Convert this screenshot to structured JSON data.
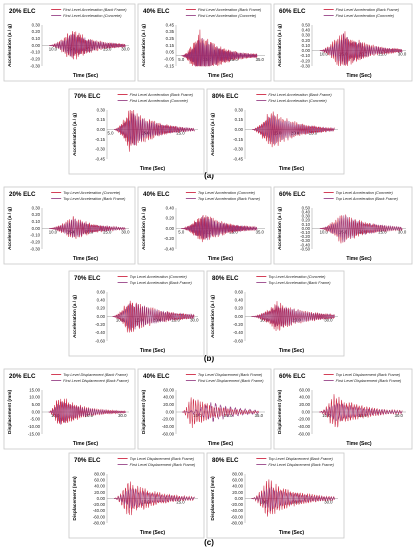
{
  "figure": {
    "section_labels": [
      "(a)",
      "(b)",
      "(c)"
    ]
  },
  "colors": {
    "series_red": "#c8102e",
    "series_purple": "#8c2f7a",
    "panel_border": "#c8c8c8",
    "axis": "#9a9a9a"
  },
  "chart_data": [
    {
      "type": "line",
      "title": "20% ELC",
      "xlabel": "Time (Sec)",
      "ylabel": "Acceleration (a / g)",
      "ylim": [
        -0.3,
        0.3
      ],
      "yticks": [
        "0.30",
        "0.20",
        "0.10",
        "0.00",
        "-0.10",
        "-0.20",
        "-0.30"
      ],
      "xticks": [
        "10.0",
        "15.0",
        "20.0",
        "25.0",
        "30.0"
      ],
      "xlim": [
        7.0,
        31.0
      ],
      "xzero": 0.0,
      "grid": false,
      "legend_position": "top",
      "series": [
        {
          "name": "First Level Acceleration (Back Frame)",
          "color": "#c8102e",
          "wave": {
            "start": 9.0,
            "end": 30.0,
            "amplitude": 0.27,
            "period": 0.45,
            "peak_time": 15.2,
            "decay": 6.0,
            "seed": 1
          }
        },
        {
          "name": "First Level Acceleration (Concrete)",
          "color": "#8c2f7a",
          "wave": {
            "start": 9.0,
            "end": 30.0,
            "amplitude": 0.22,
            "period": 0.47,
            "peak_time": 15.4,
            "decay": 6.0,
            "seed": 2
          }
        }
      ]
    },
    {
      "type": "line",
      "title": "40% ELC",
      "xlabel": "Time (Sec)",
      "ylabel": "Acceleration (a / g)",
      "ylim": [
        -0.15,
        0.45
      ],
      "yticks": [
        "0.45",
        "0.35",
        "0.25",
        "0.15",
        "0.05",
        "-0.05",
        "-0.15"
      ],
      "xticks": [
        "5.0",
        "15.0",
        "25.0",
        "35.0"
      ],
      "xlim": [
        3.0,
        37.0
      ],
      "xzero": 0.0,
      "grid": false,
      "legend_position": "top",
      "series": [
        {
          "name": "First Level Acceleration (Back Frame)",
          "color": "#c8102e",
          "wave": {
            "start": 5.0,
            "end": 34.0,
            "amplitude": 0.4,
            "period": 0.5,
            "peak_time": 12.0,
            "decay": 8.0,
            "seed": 3
          }
        },
        {
          "name": "First Level Acceleration (Concrete)",
          "color": "#8c2f7a",
          "wave": {
            "start": 5.0,
            "end": 34.0,
            "amplitude": 0.3,
            "period": 0.52,
            "peak_time": 12.5,
            "decay": 8.0,
            "seed": 4
          }
        }
      ]
    },
    {
      "type": "line",
      "title": "60% ELC",
      "xlabel": "Time (Sec)",
      "ylabel": "Acceleration (a / g)",
      "ylim": [
        -0.3,
        0.5
      ],
      "yticks": [
        "0.50",
        "0.40",
        "0.30",
        "0.20",
        "0.10",
        "0.00",
        "-0.10",
        "-0.20",
        "-0.30"
      ],
      "xticks": [
        "10.0",
        "15.0",
        "20.0",
        "25.0",
        "30.0"
      ],
      "xlim": [
        7.0,
        31.0
      ],
      "xzero": 0.0,
      "grid": false,
      "legend_position": "top",
      "series": [
        {
          "name": "First Level Acceleration (Back Frame)",
          "color": "#c8102e",
          "wave": {
            "start": 9.0,
            "end": 30.0,
            "amplitude": 0.45,
            "period": 0.45,
            "peak_time": 14.5,
            "decay": 6.0,
            "seed": 5
          }
        },
        {
          "name": "First Level Acceleration (Concrete)",
          "color": "#8c2f7a",
          "wave": {
            "start": 9.0,
            "end": 30.0,
            "amplitude": 0.35,
            "period": 0.47,
            "peak_time": 15.0,
            "decay": 6.0,
            "seed": 6
          }
        }
      ]
    },
    {
      "type": "line",
      "title": "70% ELC",
      "xlabel": "Time (Sec)",
      "ylabel": "Acceleration (a / g)",
      "ylim": [
        -0.45,
        0.3
      ],
      "yticks": [
        "0.30",
        "0.15",
        "0.00",
        "-0.15",
        "-0.30",
        "-0.45"
      ],
      "xticks": [
        "5.0",
        "15.0",
        "25.0"
      ],
      "xlim": [
        4.0,
        30.0
      ],
      "xzero": 0.0,
      "grid": false,
      "legend_position": "top",
      "series": [
        {
          "name": "First Level Acceleration (Back Frame)",
          "color": "#c8102e",
          "wave": {
            "start": 6.0,
            "end": 29.0,
            "amplitude": 0.38,
            "period": 0.5,
            "peak_time": 10.5,
            "decay": 7.0,
            "seed": 7
          }
        },
        {
          "name": "First Level Acceleration (Concrete)",
          "color": "#8c2f7a",
          "wave": {
            "start": 6.0,
            "end": 29.0,
            "amplitude": 0.3,
            "period": 0.52,
            "peak_time": 11.0,
            "decay": 7.0,
            "seed": 8
          }
        }
      ]
    },
    {
      "type": "line",
      "title": "80% ELC",
      "xlabel": "Time (Sec)",
      "ylabel": "Acceleration (a / g)",
      "ylim": [
        -0.45,
        0.3
      ],
      "yticks": [
        "0.30",
        "0.15",
        "0.00",
        "-0.15",
        "-0.30",
        "-0.45"
      ],
      "xticks": [
        "15.0",
        "20.0",
        "25.0"
      ],
      "xticklabels_raw": "-0.1530.0",
      "xlim": [
        6.0,
        32.0
      ],
      "xzero": 0.0,
      "grid": false,
      "legend_position": "top",
      "series": [
        {
          "name": "First Level Acceleration (Back Frame)",
          "color": "#c8102e",
          "wave": {
            "start": 8.0,
            "end": 31.0,
            "amplitude": 0.35,
            "period": 0.55,
            "peak_time": 13.0,
            "decay": 7.0,
            "seed": 9
          }
        },
        {
          "name": "First Level Acceleration (Concrete)",
          "color": "#8c2f7a",
          "wave": {
            "start": 8.0,
            "end": 31.0,
            "amplitude": 0.28,
            "period": 0.57,
            "peak_time": 13.5,
            "decay": 7.0,
            "seed": 10
          }
        }
      ]
    },
    {
      "type": "line",
      "title": "20% ELC",
      "xlabel": "Time (Sec)",
      "ylabel": "Acceleration (a / g)",
      "ylim": [
        -0.3,
        0.3
      ],
      "yticks": [
        "0.30",
        "0.20",
        "0.10",
        "0.00",
        "-0.10",
        "-0.20",
        "-0.30"
      ],
      "xticks": [
        "10.0",
        "15.0",
        "20.0",
        "25.0",
        "30.0"
      ],
      "xlim": [
        7.0,
        31.0
      ],
      "xzero": 0.0,
      "grid": false,
      "legend_position": "top",
      "series": [
        {
          "name": "Top Level Acceleration (Concrete)",
          "color": "#c8102e",
          "wave": {
            "start": 9.0,
            "end": 30.0,
            "amplitude": 0.2,
            "period": 0.5,
            "peak_time": 15.5,
            "decay": 6.0,
            "seed": 11
          }
        },
        {
          "name": "Top Level Acceleration (Back Frame)",
          "color": "#8c2f7a",
          "wave": {
            "start": 9.0,
            "end": 30.0,
            "amplitude": 0.17,
            "period": 0.52,
            "peak_time": 15.8,
            "decay": 6.0,
            "seed": 12
          }
        }
      ]
    },
    {
      "type": "line",
      "title": "40% ELC",
      "xlabel": "Time (Sec)",
      "ylabel": "Acceleration (a / g)",
      "ylim": [
        -0.4,
        0.4
      ],
      "yticks": [
        "0.40",
        "0.20",
        "0.00",
        "-0.20",
        "-0.40"
      ],
      "xticks": [
        "5.0",
        "15.0",
        "25.0",
        "35.0"
      ],
      "xlim": [
        3.0,
        37.0
      ],
      "xzero": 0.0,
      "grid": false,
      "legend_position": "top",
      "series": [
        {
          "name": "Top Level Acceleration (Concrete)",
          "color": "#c8102e",
          "wave": {
            "start": 5.0,
            "end": 34.0,
            "amplitude": 0.33,
            "period": 0.55,
            "peak_time": 13.0,
            "decay": 9.0,
            "seed": 13
          }
        },
        {
          "name": "Top Level Acceleration (Back Frame)",
          "color": "#8c2f7a",
          "wave": {
            "start": 5.0,
            "end": 34.0,
            "amplitude": 0.28,
            "period": 0.57,
            "peak_time": 13.5,
            "decay": 9.0,
            "seed": 14
          }
        }
      ]
    },
    {
      "type": "line",
      "title": "60% ELC",
      "xlabel": "Time (Sec)",
      "ylabel": "Acceleration (a / g)",
      "ylim": [
        -0.5,
        0.5
      ],
      "yticks": [
        "0.50",
        "0.40",
        "0.30",
        "0.20",
        "0.10",
        "0.00",
        "-0.10",
        "-0.20",
        "-0.30",
        "-0.40",
        "-0.50"
      ],
      "xticks": [
        "10.0",
        "15.0",
        "20.0",
        "25.0",
        "30.0"
      ],
      "xlim": [
        7.0,
        31.0
      ],
      "xzero": 0.0,
      "grid": false,
      "legend_position": "top",
      "series": [
        {
          "name": "Top Level Acceleration (Concrete)",
          "color": "#c8102e",
          "wave": {
            "start": 9.0,
            "end": 30.0,
            "amplitude": 0.42,
            "period": 0.5,
            "peak_time": 14.5,
            "decay": 7.0,
            "seed": 15
          }
        },
        {
          "name": "Top Level Acceleration (Back Frame)",
          "color": "#8c2f7a",
          "wave": {
            "start": 9.0,
            "end": 30.0,
            "amplitude": 0.36,
            "period": 0.52,
            "peak_time": 15.0,
            "decay": 7.0,
            "seed": 16
          }
        }
      ]
    },
    {
      "type": "line",
      "title": "70% ELC",
      "xlabel": "Time (Sec)",
      "ylabel": "Acceleration (a / g)",
      "ylim": [
        -0.6,
        0.6
      ],
      "yticks": [
        "0.60",
        "0.40",
        "0.20",
        "0.00",
        "-0.20",
        "-0.40",
        "-0.60"
      ],
      "xticks": [
        "10.0",
        "15.0",
        "20.0",
        "25.0",
        "30.0"
      ],
      "xlim": [
        6.5,
        31.0
      ],
      "xzero": 0.0,
      "grid": false,
      "legend_position": "top",
      "series": [
        {
          "name": "Top Level Acceleration (Concrete)",
          "color": "#c8102e",
          "wave": {
            "start": 8.0,
            "end": 30.0,
            "amplitude": 0.5,
            "period": 0.55,
            "peak_time": 12.5,
            "decay": 8.0,
            "seed": 17
          }
        },
        {
          "name": "Top Level Acceleration (Back Frame)",
          "color": "#8c2f7a",
          "wave": {
            "start": 8.0,
            "end": 30.0,
            "amplitude": 0.42,
            "period": 0.57,
            "peak_time": 13.0,
            "decay": 8.0,
            "seed": 18
          }
        }
      ]
    },
    {
      "type": "line",
      "title": "80% ELC",
      "xlabel": "Time (Sec)",
      "ylabel": "Acceleration (a / g)",
      "ylim": [
        -0.6,
        0.6
      ],
      "yticks": [
        "0.60",
        "0.40",
        "0.20",
        "0.00",
        "-0.20",
        "-0.40",
        "-0.60"
      ],
      "xticks": [
        "10.0",
        "20.0",
        "30.0"
      ],
      "xlim": [
        4.0,
        33.0
      ],
      "xzero": 0.0,
      "grid": false,
      "legend_position": "top",
      "series": [
        {
          "name": "Top Level Acceleration (Concrete)",
          "color": "#c8102e",
          "wave": {
            "start": 6.0,
            "end": 32.0,
            "amplitude": 0.4,
            "period": 0.6,
            "peak_time": 14.0,
            "decay": 9.0,
            "seed": 19
          }
        },
        {
          "name": "Top Level Acceleration (Back Frame)",
          "color": "#8c2f7a",
          "wave": {
            "start": 6.0,
            "end": 32.0,
            "amplitude": 0.33,
            "period": 0.62,
            "peak_time": 14.5,
            "decay": 9.0,
            "seed": 20
          }
        }
      ]
    },
    {
      "type": "line",
      "title": "20% ELC",
      "xlabel": "Time (Sec)",
      "ylabel": "Displacement (mm)",
      "ylim": [
        -15,
        15
      ],
      "yticks": [
        "15.00",
        "10.00",
        "5.00",
        "0.00",
        "-5.00",
        "-10.00",
        "-15.00"
      ],
      "xticks": [
        "10.0",
        "20.0",
        "30.0"
      ],
      "xlim": [
        6.0,
        32.0
      ],
      "xzero": 0.0,
      "grid": false,
      "legend_position": "top",
      "series": [
        {
          "name": "Top Level Displacement (Back Frame)",
          "color": "#c8102e",
          "wave": {
            "start": 8.0,
            "end": 31.0,
            "amplitude": 13.0,
            "period": 0.6,
            "peak_time": 11.0,
            "decay": 7.0,
            "seed": 21
          }
        },
        {
          "name": "First Level Displacement (Back Frame)",
          "color": "#8c2f7a",
          "wave": {
            "start": 8.0,
            "end": 31.0,
            "amplitude": 9.0,
            "period": 0.62,
            "peak_time": 11.5,
            "decay": 7.0,
            "seed": 22
          }
        }
      ]
    },
    {
      "type": "line",
      "title": "40% ELC",
      "xlabel": "Time (Sec)",
      "ylabel": "Displacement (mm)",
      "ylim": [
        -60,
        60
      ],
      "yticks": [
        "60.00",
        "40.00",
        "20.00",
        "0.00",
        "-20.00",
        "-40.00",
        "-60.00"
      ],
      "xticks": [
        "15.0",
        "25.0",
        "35.0"
      ],
      "xlim": [
        8.0,
        37.0
      ],
      "xzero": 0.0,
      "grid": false,
      "legend_position": "top",
      "series": [
        {
          "name": "Top Level Displacement (Back Frame)",
          "color": "#c8102e",
          "wave": {
            "start": 10.0,
            "end": 35.0,
            "amplitude": 48.0,
            "period": 0.75,
            "peak_time": 13.0,
            "decay": 8.0,
            "seed": 23
          }
        },
        {
          "name": "First Level Displacement (Back Frame)",
          "color": "#8c2f7a",
          "wave": {
            "start": 10.0,
            "end": 35.0,
            "amplitude": 30.0,
            "period": 1.6,
            "peak_time": 20.0,
            "decay": 9.0,
            "seed": 24
          }
        }
      ]
    },
    {
      "type": "line",
      "title": "60% ELC",
      "xlabel": "Time (Sec)",
      "ylabel": "Displacement (mm)",
      "ylim": [
        -60,
        60
      ],
      "yticks": [
        "60.00",
        "40.00",
        "20.00",
        "0.00",
        "-20.00",
        "-40.00",
        "-60.00"
      ],
      "xticks": [
        "10.0",
        "20.0",
        "30.0"
      ],
      "xlim": [
        6.0,
        32.0
      ],
      "xzero": 0.0,
      "grid": false,
      "legend_position": "top",
      "series": [
        {
          "name": "Top Level Displacement (Back Frame)",
          "color": "#c8102e",
          "wave": {
            "start": 8.0,
            "end": 31.0,
            "amplitude": 50.0,
            "period": 0.7,
            "peak_time": 12.0,
            "decay": 8.0,
            "seed": 25
          }
        },
        {
          "name": "First Level Displacement (Back Frame)",
          "color": "#8c2f7a",
          "wave": {
            "start": 8.0,
            "end": 31.0,
            "amplitude": 32.0,
            "period": 0.72,
            "peak_time": 12.5,
            "decay": 8.0,
            "seed": 26
          }
        }
      ]
    },
    {
      "type": "line",
      "title": "70% ELC",
      "xlabel": "Time (Sec)",
      "ylabel": "Displacement (mm)",
      "ylim": [
        -80,
        80
      ],
      "yticks": [
        "80.00",
        "60.00",
        "40.00",
        "20.00",
        "0.00",
        "-20.00",
        "-40.00",
        "-60.00",
        "-80.00"
      ],
      "xticks": [
        "15.0",
        "25.0"
      ],
      "xlim": [
        4.0,
        30.0
      ],
      "xzero": 0.0,
      "grid": false,
      "legend_position": "top",
      "series": [
        {
          "name": "Top Level Displacement (Back Frame)",
          "color": "#c8102e",
          "wave": {
            "start": 6.0,
            "end": 29.0,
            "amplitude": 65.0,
            "period": 0.7,
            "peak_time": 10.0,
            "decay": 8.0,
            "seed": 27
          }
        },
        {
          "name": "First Level Displacement (Back Frame)",
          "color": "#8c2f7a",
          "wave": {
            "start": 6.0,
            "end": 29.0,
            "amplitude": 42.0,
            "period": 0.72,
            "peak_time": 10.5,
            "decay": 8.0,
            "seed": 28
          }
        }
      ]
    },
    {
      "type": "line",
      "title": "80% ELC",
      "xlabel": "Time (Sec)",
      "ylabel": "Displacement (mm)",
      "ylim": [
        -80,
        80
      ],
      "yticks": [
        "80.00",
        "60.00",
        "40.00",
        "20.00",
        "0.00",
        "-20.00",
        "-40.00",
        "-60.00",
        "-80.00"
      ],
      "xticks": [
        "10.0",
        "20.0",
        "30.0"
      ],
      "xlim": [
        4.0,
        33.0
      ],
      "xzero": 0.0,
      "grid": false,
      "legend_position": "top",
      "series": [
        {
          "name": "Top Level Displacement (Back Frame)",
          "color": "#c8102e",
          "wave": {
            "start": 6.0,
            "end": 32.0,
            "amplitude": 68.0,
            "period": 0.75,
            "peak_time": 11.0,
            "decay": 9.0,
            "seed": 29
          }
        },
        {
          "name": "First Level Displacement (Back Frame)",
          "color": "#8c2f7a",
          "wave": {
            "start": 6.0,
            "end": 32.0,
            "amplitude": 44.0,
            "period": 0.77,
            "peak_time": 11.5,
            "decay": 9.0,
            "seed": 30
          }
        }
      ]
    }
  ]
}
